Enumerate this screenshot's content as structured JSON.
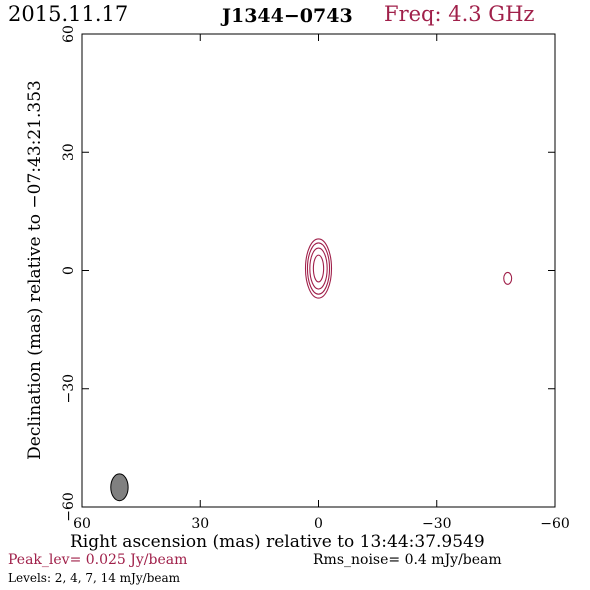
{
  "header": {
    "date": "2015.11.17",
    "source": "J1344−0743",
    "freq": "Freq: 4.3 GHz"
  },
  "footer": {
    "peak": "Peak_lev=  0.025 Jy/beam",
    "rms": "Rms_noise=  0.4 mJy/beam",
    "levels": "Levels:   2,    4,    7,   14  mJy/beam"
  },
  "chart_data": {
    "type": "contour",
    "xlabel": "Right ascension (mas) relative to 13:44:37.9549",
    "ylabel": "Declination (mas) relative to −07:43:21.353",
    "xlim": [
      60,
      -60
    ],
    "ylim": [
      -60,
      60
    ],
    "xticks": [
      60,
      30,
      0,
      -30,
      -60
    ],
    "yticks": [
      -60,
      -30,
      0,
      30,
      60
    ],
    "xtick_labels": [
      "60",
      "30",
      "0",
      "−30",
      "−60"
    ],
    "ytick_labels": [
      "−60",
      "−30",
      "0",
      "30",
      "60"
    ],
    "contour_levels_mJy": [
      2,
      4,
      7,
      14
    ],
    "source_component": {
      "x": 0,
      "y": 0.5
    },
    "contours": [
      {
        "level": 2,
        "x": 0,
        "y": 0.5,
        "semi_x": 3.3,
        "semi_y": 7.5
      },
      {
        "level": 4,
        "x": 0,
        "y": 0.5,
        "semi_x": 2.8,
        "semi_y": 6.5
      },
      {
        "level": 7,
        "x": 0,
        "y": 0.5,
        "semi_x": 2.2,
        "semi_y": 5.2
      },
      {
        "level": 14,
        "x": 0,
        "y": 0.5,
        "semi_x": 1.3,
        "semi_y": 3.4
      }
    ],
    "stray_feature": {
      "x": -48,
      "y": -2,
      "semi_x": 1.0,
      "semi_y": 1.5
    },
    "beam": {
      "x": 50.5,
      "y": -55,
      "semi_x": 2.2,
      "semi_y": 3.4
    },
    "colors": {
      "contour": "#a0204a",
      "beam": "#808080",
      "axes": "#000000"
    }
  }
}
